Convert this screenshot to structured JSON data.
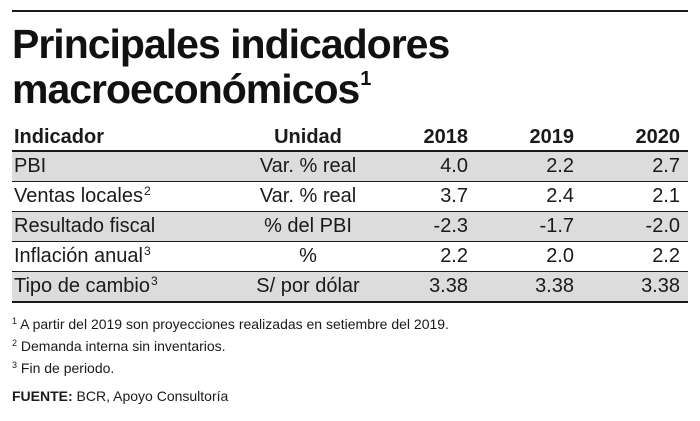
{
  "title": {
    "line1": "Principales indicadores",
    "line2": "macroeconómicos",
    "sup": "1"
  },
  "table": {
    "headers": {
      "indicator": "Indicador",
      "unit": "Unidad",
      "y2018": "2018",
      "y2019": "2019",
      "y2020": "2020"
    },
    "rows": [
      {
        "indicator": "PBI",
        "sup": "",
        "unit": "Var. % real",
        "y2018": "4.0",
        "y2019": "2.2",
        "y2020": "2.7"
      },
      {
        "indicator": "Ventas locales",
        "sup": "2",
        "unit": "Var. % real",
        "y2018": "3.7",
        "y2019": "2.4",
        "y2020": "2.1"
      },
      {
        "indicator": "Resultado fiscal",
        "sup": "",
        "unit": "% del PBI",
        "y2018": "-2.3",
        "y2019": "-1.7",
        "y2020": "-2.0"
      },
      {
        "indicator": "Inflación anual",
        "sup": "3",
        "unit": "%",
        "y2018": "2.2",
        "y2019": "2.0",
        "y2020": "2.2"
      },
      {
        "indicator": "Tipo de cambio",
        "sup": "3",
        "unit": "S/ por dólar",
        "y2018": "3.38",
        "y2019": "3.38",
        "y2020": "3.38"
      }
    ]
  },
  "notes": [
    {
      "sup": "1",
      "text": " A partir del 2019 son proyecciones realizadas en setiembre del 2019."
    },
    {
      "sup": "2",
      "text": " Demanda interna sin inventarios."
    },
    {
      "sup": "3",
      "text": " Fin de periodo."
    }
  ],
  "source": {
    "label": "FUENTE:",
    "text": " BCR, Apoyo Consultoría"
  },
  "colors": {
    "shade": "#dcdcdc",
    "rule": "#1a1a1a"
  }
}
